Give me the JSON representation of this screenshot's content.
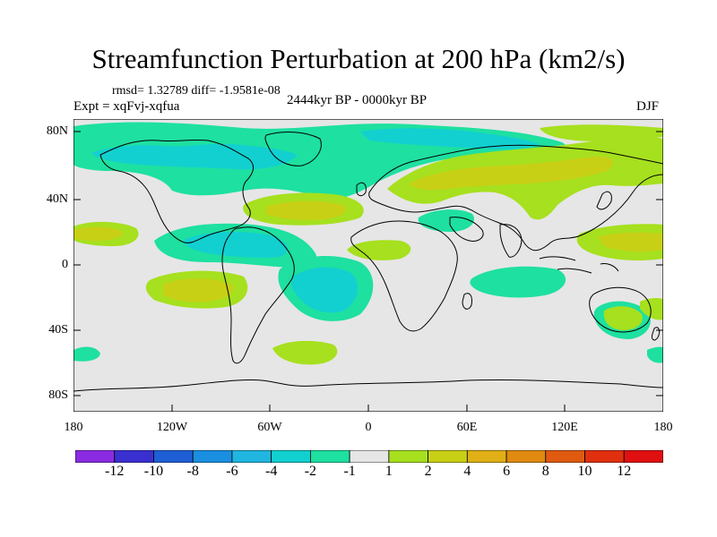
{
  "title": "Streamfunction Perturbation at 200 hPa (km2/s)",
  "stats": "rmsd= 1.32789 diff= -1.9581e-08",
  "expt": "Expt = xqFvj-xqfua",
  "period": "2444kyr BP - 0000kyr BP",
  "season": "DJF",
  "lat_labels": [
    "80N",
    "40N",
    "0",
    "40S",
    "80S"
  ],
  "lon_labels": [
    "180",
    "120W",
    "60W",
    "0",
    "60E",
    "120E",
    "180"
  ],
  "colorbar": {
    "labels": [
      "-12",
      "-10",
      "-8",
      "-6",
      "-4",
      "-2",
      "-1",
      "1",
      "2",
      "4",
      "6",
      "8",
      "10",
      "12"
    ],
    "colors": [
      "#8a2be2",
      "#3a2fd0",
      "#1f5fd6",
      "#1a8fe0",
      "#20b6e0",
      "#12d0d0",
      "#1ee0a0",
      "#e6e6e6",
      "#a6e01e",
      "#c8d016",
      "#e0b016",
      "#e08a10",
      "#e05a10",
      "#e03010",
      "#e01010"
    ]
  },
  "colors": {
    "land_line": "#000000",
    "background": "#e6e6e6",
    "neg1": "#1ee0a0",
    "neg2": "#12d0d0",
    "pos1": "#a6e01e",
    "pos2": "#c8d016"
  }
}
